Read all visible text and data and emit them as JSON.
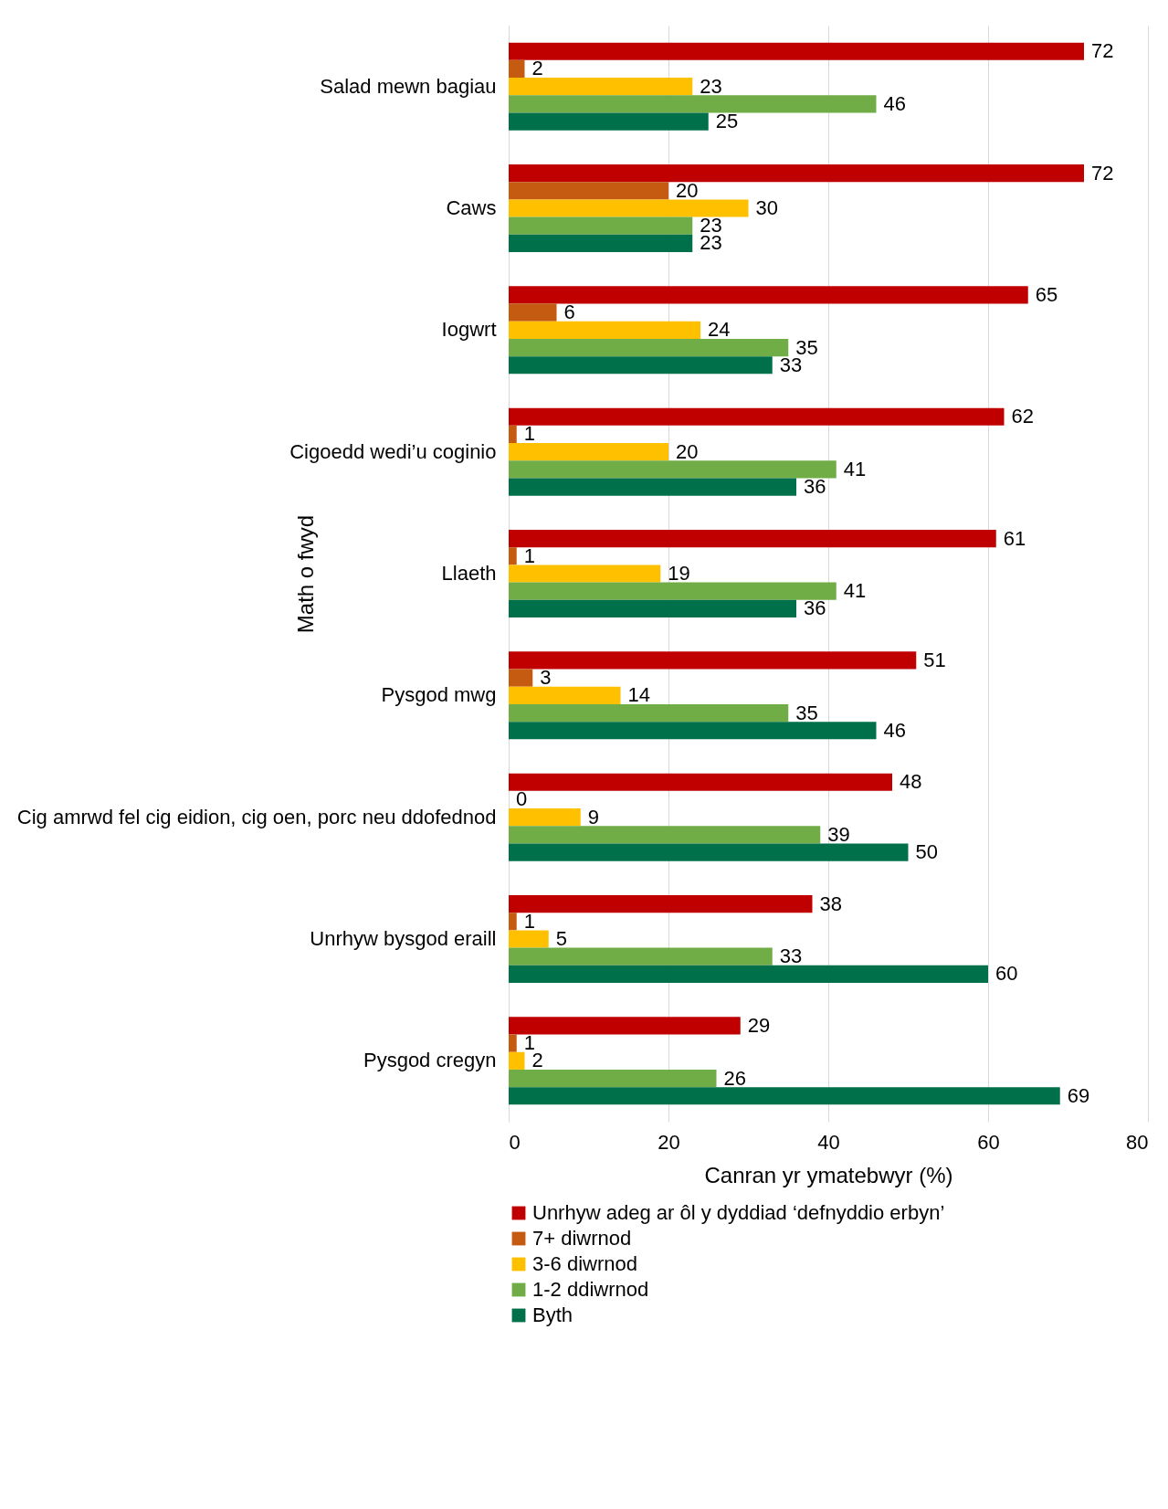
{
  "chart_data": {
    "type": "bar",
    "orientation": "horizontal",
    "xlabel": "Canran yr ymatebwyr (%)",
    "ylabel": "Math o fwyd",
    "categories": [
      "Salad mewn bagiau",
      "Caws",
      "Iogwrt",
      "Cigoedd wedi’u coginio",
      "Llaeth",
      "Pysgod mwg",
      "Cig amrwd fel cig eidion, cig oen, porc neu ddofednod",
      "Unrhyw bysgod eraill",
      "Pysgod cregyn"
    ],
    "series": [
      {
        "name": "Unrhyw adeg ar ôl y dyddiad ‘defnyddio erbyn’",
        "color": "#c00000",
        "values": [
          72,
          72,
          65,
          62,
          61,
          51,
          48,
          38,
          29
        ]
      },
      {
        "name": "7+ diwrnod",
        "color": "#c55a11",
        "values": [
          2,
          20,
          6,
          1,
          1,
          3,
          0,
          1,
          1
        ]
      },
      {
        "name": "3-6 diwrnod",
        "color": "#ffc000",
        "values": [
          23,
          30,
          24,
          20,
          19,
          14,
          9,
          5,
          2
        ]
      },
      {
        "name": "1-2 ddiwrnod",
        "color": "#70ad47",
        "values": [
          46,
          23,
          35,
          41,
          41,
          35,
          39,
          33,
          26
        ]
      },
      {
        "name": "Byth",
        "color": "#00704a",
        "values": [
          25,
          23,
          33,
          36,
          36,
          46,
          50,
          60,
          69
        ]
      }
    ],
    "xlim": [
      0,
      80
    ],
    "xticks": [
      0,
      20,
      40,
      60,
      80
    ],
    "grid": "x",
    "legend": "bottom",
    "data_labels": true
  }
}
